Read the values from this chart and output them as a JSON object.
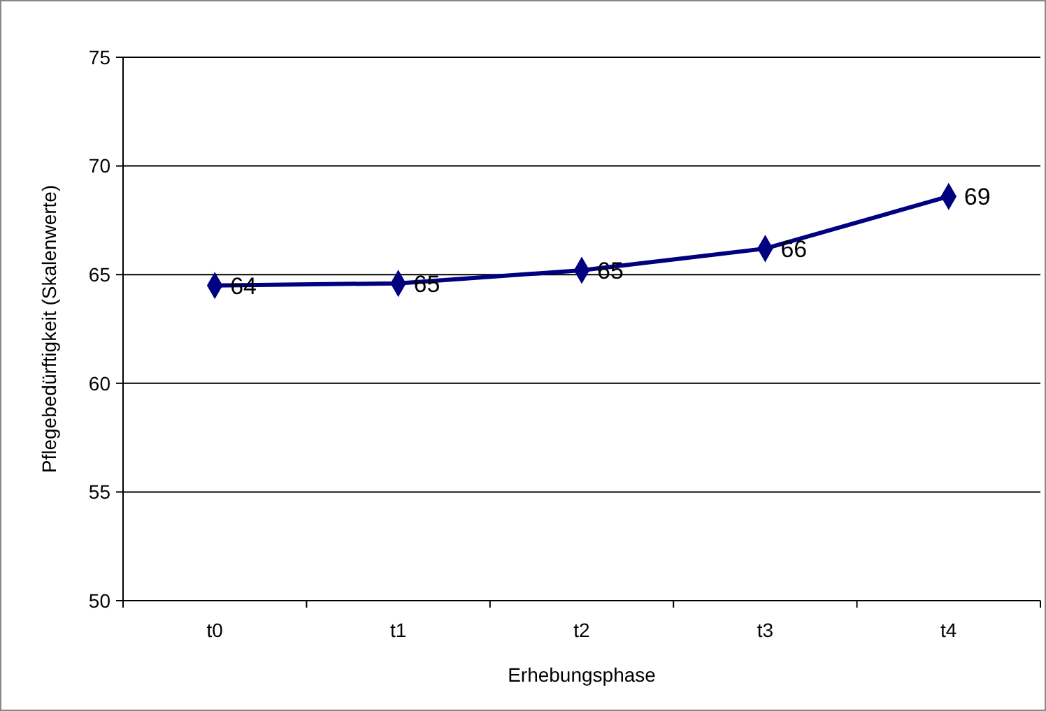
{
  "chart_data": {
    "type": "line",
    "xlabel": "Erhebungsphase",
    "ylabel": "Pflegebedürftigkeit (Skalenwerte)",
    "categories": [
      "t0",
      "t1",
      "t2",
      "t3",
      "t4"
    ],
    "series": [
      {
        "color": "#000080",
        "values": [
          64.5,
          64.6,
          65.2,
          66.2,
          68.6
        ],
        "value_labels": [
          "64",
          "65",
          "65",
          "66",
          "69"
        ]
      }
    ],
    "ylim": [
      50,
      75
    ],
    "yticks": [
      50,
      55,
      60,
      65,
      70,
      75
    ],
    "grid": "y",
    "marker": "diamond",
    "line_style": "solid"
  }
}
